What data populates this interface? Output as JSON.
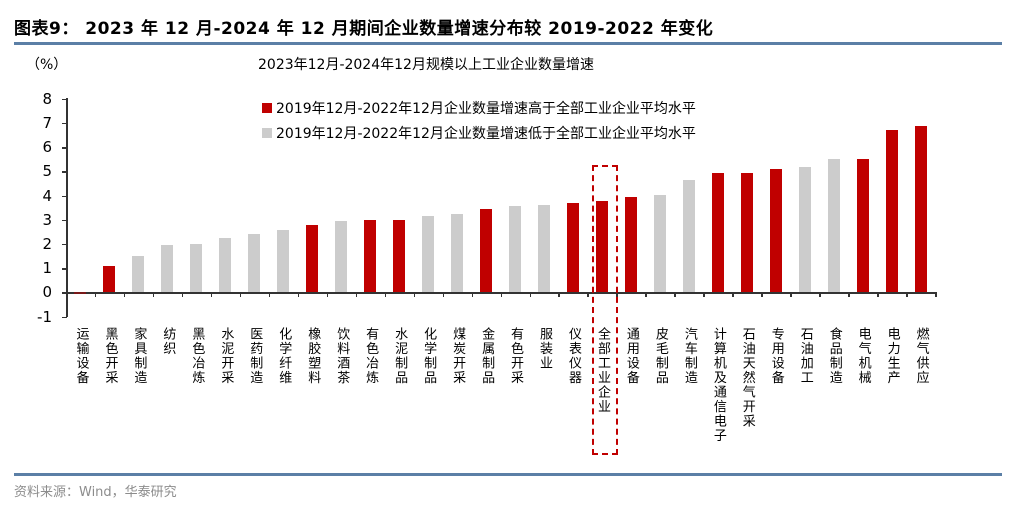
{
  "header": {
    "figure_title": "图表9： 2023 年 12 月-2024 年 12 月期间企业数量增速分布较 2019-2022 年变化"
  },
  "footer": {
    "source": "资料来源：Wind，华泰研究"
  },
  "colors": {
    "high": "#c00000",
    "low": "#cccccc",
    "rule": "#5b7fa6"
  },
  "chart_data": {
    "type": "bar",
    "title": "2023年12月-2024年12月规模以上工业企业数量增速",
    "ylabel": "（%）",
    "xlabel": "",
    "ylim": [
      -1,
      8
    ],
    "yticks": [
      -1,
      0,
      1,
      2,
      3,
      4,
      5,
      6,
      7,
      8
    ],
    "grid": false,
    "legend_position": "top-left inside",
    "legend": [
      {
        "name": "2019年12月-2022年12月企业数量增速高于全部工业企业平均水平",
        "color": "#c00000",
        "key": "high"
      },
      {
        "name": "2019年12月-2022年12月企业数量增速低于全部工业企业平均水平",
        "color": "#cccccc",
        "key": "low"
      }
    ],
    "categories": [
      "运输设备",
      "黑色开采",
      "家具制造",
      "纺织",
      "黑色冶炼",
      "水泥开采",
      "医药制造",
      "化学纤维",
      "橡胶塑料",
      "饮料酒茶",
      "有色冶炼",
      "水泥制品",
      "化学制品",
      "煤炭开采",
      "金属制品",
      "有色开采",
      "服装业",
      "仪表仪器",
      "全部工业企业",
      "通用设备",
      "皮毛制品",
      "汽车制造",
      "计算机及通信电子",
      "石油天然气开采",
      "专用设备",
      "石油加工",
      "食品制造",
      "电气机械",
      "电力生产",
      "燃气供应"
    ],
    "values": [
      -0.05,
      1.1,
      1.5,
      1.96,
      1.99,
      2.25,
      2.41,
      2.56,
      2.79,
      2.93,
      2.97,
      2.97,
      3.15,
      3.22,
      3.44,
      3.57,
      3.6,
      3.68,
      3.79,
      3.95,
      4.01,
      4.64,
      4.94,
      4.94,
      5.08,
      5.18,
      5.51,
      5.52,
      6.72,
      6.86
    ],
    "groups": [
      "high",
      "high",
      "low",
      "low",
      "low",
      "low",
      "low",
      "low",
      "high",
      "low",
      "high",
      "high",
      "low",
      "low",
      "high",
      "low",
      "low",
      "high",
      "high",
      "high",
      "low",
      "low",
      "high",
      "high",
      "high",
      "low",
      "low",
      "high",
      "high",
      "high"
    ],
    "annotations": [
      {
        "type": "dashed-box",
        "target": "全部工业企业",
        "color": "#c00000"
      }
    ]
  }
}
